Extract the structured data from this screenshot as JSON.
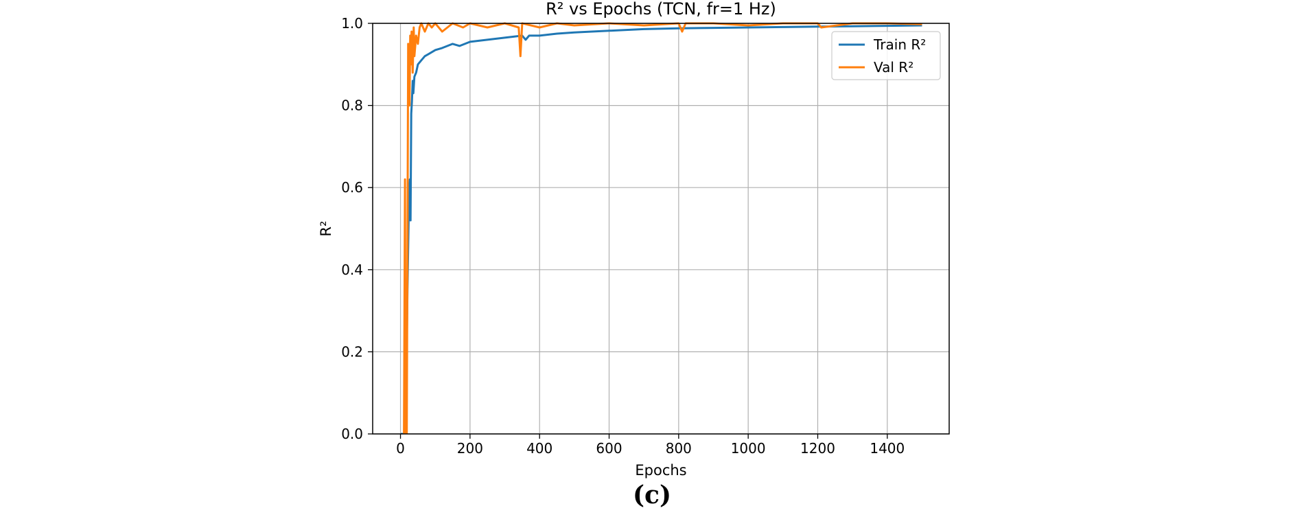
{
  "chart_data": {
    "type": "line",
    "title": "R² vs Epochs (TCN, fr=1 Hz)",
    "xlabel": "Epochs",
    "ylabel": "R²",
    "xlim": [
      -80,
      1578
    ],
    "ylim": [
      0.0,
      1.0
    ],
    "xticks": [
      0,
      200,
      400,
      600,
      800,
      1000,
      1200,
      1400
    ],
    "yticks": [
      0.0,
      0.2,
      0.4,
      0.6,
      0.8,
      1.0
    ],
    "grid": true,
    "legend_position": "upper right",
    "series": [
      {
        "name": "Train R²",
        "color": "#1f77b4",
        "x": [
          1,
          15,
          20,
          24,
          27,
          29,
          31,
          33,
          35,
          37,
          40,
          45,
          50,
          60,
          70,
          80,
          100,
          120,
          150,
          170,
          200,
          250,
          300,
          350,
          360,
          370,
          400,
          450,
          500,
          600,
          700,
          800,
          900,
          1000,
          1100,
          1200,
          1300,
          1400,
          1500
        ],
        "y": [
          0.0,
          0.0,
          0.35,
          0.55,
          0.62,
          0.52,
          0.78,
          0.81,
          0.86,
          0.83,
          0.87,
          0.88,
          0.9,
          0.91,
          0.92,
          0.925,
          0.935,
          0.94,
          0.95,
          0.945,
          0.955,
          0.96,
          0.965,
          0.97,
          0.96,
          0.97,
          0.97,
          0.975,
          0.978,
          0.982,
          0.986,
          0.988,
          0.989,
          0.99,
          0.991,
          0.992,
          0.993,
          0.994,
          0.995
        ]
      },
      {
        "name": "Val R²",
        "color": "#ff7f0e",
        "x": [
          10,
          13,
          15,
          18,
          20,
          22,
          24,
          26,
          28,
          30,
          32,
          35,
          38,
          40,
          45,
          50,
          55,
          60,
          70,
          80,
          90,
          100,
          120,
          150,
          180,
          200,
          250,
          300,
          340,
          345,
          350,
          400,
          450,
          500,
          600,
          700,
          800,
          810,
          820,
          900,
          1000,
          1100,
          1200,
          1210,
          1300,
          1400,
          1500
        ],
        "y": [
          0.0,
          0.62,
          0.0,
          0.0,
          0.45,
          0.95,
          0.88,
          0.8,
          0.97,
          0.9,
          0.98,
          0.88,
          0.99,
          0.92,
          0.97,
          0.95,
          0.99,
          1.0,
          0.98,
          1.0,
          0.99,
          1.0,
          0.98,
          1.0,
          0.99,
          1.0,
          0.99,
          1.0,
          0.99,
          0.92,
          1.0,
          0.99,
          1.0,
          0.995,
          1.0,
          0.995,
          1.0,
          0.98,
          1.0,
          1.0,
          0.995,
          1.0,
          1.0,
          0.99,
          1.0,
          1.0,
          0.998
        ]
      }
    ]
  },
  "caption": "(c)"
}
